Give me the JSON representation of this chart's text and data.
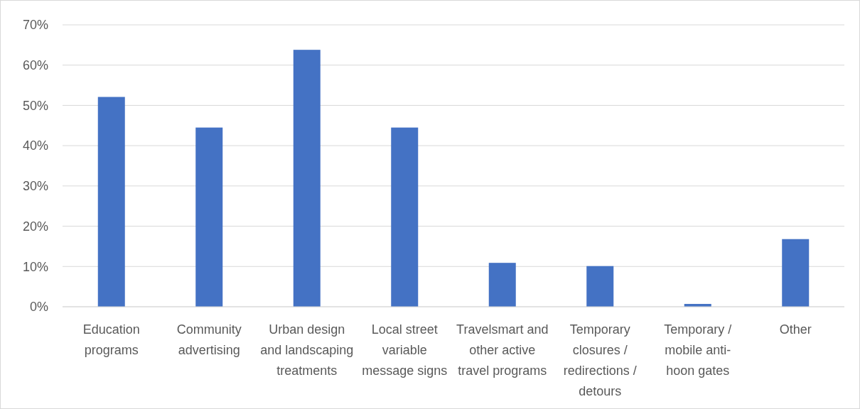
{
  "chart_data": {
    "type": "bar",
    "categories": [
      "Education programs",
      "Community advertising",
      "Urban design and landscaping treatments",
      "Local street variable message signs",
      "Travelsmart and other active travel programs",
      "Temporary closures / redirections / detours",
      "Temporary / mobile anti-hoon gates",
      "Other"
    ],
    "values": [
      52.1,
      44.5,
      63.8,
      44.5,
      10.9,
      10.1,
      0.7,
      16.8
    ],
    "color": "#4472c4",
    "ylim": [
      0,
      70
    ],
    "yticks": [
      {
        "value": 0,
        "label": "0%"
      },
      {
        "value": 10,
        "label": "10%"
      },
      {
        "value": 20,
        "label": "20%"
      },
      {
        "value": 30,
        "label": "30%"
      },
      {
        "value": 40,
        "label": "40%"
      },
      {
        "value": 50,
        "label": "50%"
      },
      {
        "value": 60,
        "label": "60%"
      },
      {
        "value": 70,
        "label": "70%"
      }
    ],
    "grid": "y"
  }
}
